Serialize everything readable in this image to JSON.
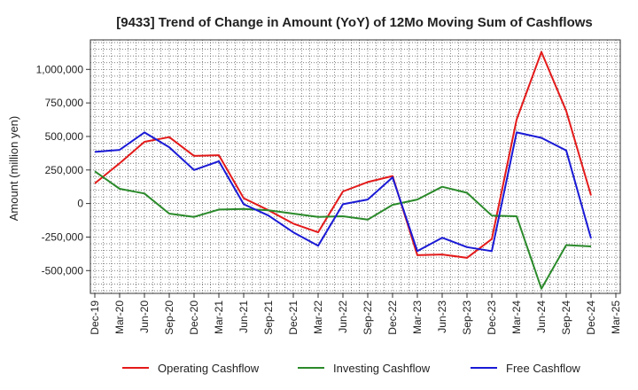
{
  "chart_data": {
    "type": "line",
    "title": "[9433]  Trend of Change in Amount (YoY) of 12Mo Moving Sum of Cashflows",
    "xlabel": "",
    "ylabel": "Amount (million yen)",
    "ylim": [
      -670000,
      1220000
    ],
    "yticks": [
      1000000,
      750000,
      500000,
      250000,
      0,
      -250000,
      -500000
    ],
    "ytick_labels": [
      "1,000,000",
      "750,000",
      "500,000",
      "250,000",
      "0",
      "-250,000",
      "-500,000"
    ],
    "x_tick_labels": [
      "Dec-19",
      "Mar-20",
      "Jun-20",
      "Sep-20",
      "Dec-20",
      "Mar-21",
      "Jun-21",
      "Sep-21",
      "Dec-21",
      "Mar-22",
      "Jun-22",
      "Sep-22",
      "Dec-22",
      "Mar-23",
      "Jun-23",
      "Sep-23",
      "Dec-23",
      "Mar-24",
      "Jun-24",
      "Sep-24",
      "Dec-24",
      "Mar-25"
    ],
    "grid": true,
    "legend": "bottom",
    "series": [
      {
        "name": "Operating Cashflow",
        "color": "#e41a1a",
        "values": [
          150000,
          300000,
          460000,
          495000,
          355000,
          360000,
          40000,
          -50000,
          -150000,
          -215000,
          90000,
          160000,
          205000,
          -385000,
          -380000,
          -405000,
          -265000,
          625000,
          1130000,
          690000,
          60000
        ]
      },
      {
        "name": "Investing Cashflow",
        "color": "#2a8a2a",
        "values": [
          240000,
          110000,
          75000,
          -75000,
          -100000,
          -45000,
          -40000,
          -50000,
          -75000,
          -100000,
          -95000,
          -120000,
          -10000,
          30000,
          125000,
          80000,
          -90000,
          -95000,
          -635000,
          -310000,
          -320000
        ]
      },
      {
        "name": "Free Cashflow",
        "color": "#1a1ad6",
        "values": [
          385000,
          400000,
          530000,
          420000,
          250000,
          315000,
          -5000,
          -90000,
          -215000,
          -315000,
          -5000,
          30000,
          195000,
          -355000,
          -255000,
          -325000,
          -355000,
          530000,
          490000,
          395000,
          -260000
        ]
      }
    ]
  }
}
